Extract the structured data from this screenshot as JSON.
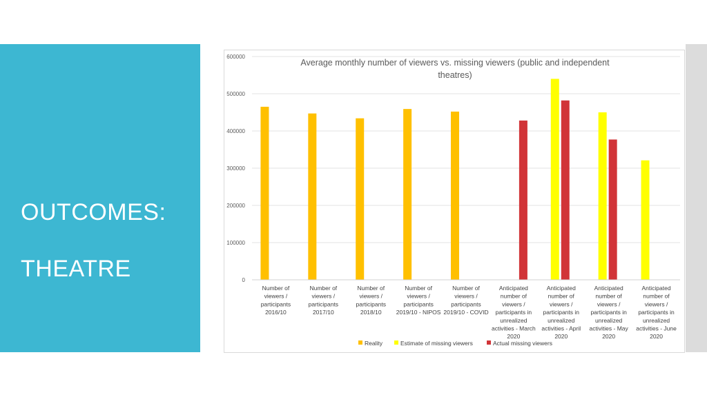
{
  "slide": {
    "title_line1": "OUTCOMES:",
    "title_line2": "THEATRE"
  },
  "colors": {
    "panel": "#3db7d2",
    "reality": "#ffc000",
    "estimate": "#ffff00",
    "actual": "#d13438"
  },
  "chart_data": {
    "type": "bar",
    "title_lines": [
      "Average monthly number of viewers vs. missing viewers (public and independent",
      "theatres)"
    ],
    "ylim": [
      0,
      600000
    ],
    "yticks": [
      0,
      100000,
      200000,
      300000,
      400000,
      500000,
      600000
    ],
    "grid": true,
    "legend_position": "bottom",
    "categories": [
      [
        "Number of",
        "viewers /",
        "participants",
        "2016/10"
      ],
      [
        "Number of",
        "viewers /",
        "participants",
        "2017/10"
      ],
      [
        "Number of",
        "viewers /",
        "participants",
        "2018/10"
      ],
      [
        "Number of",
        "viewers /",
        "participants",
        "2019/10 - NIPOS"
      ],
      [
        "Number of",
        "viewers /",
        "participants",
        "2019/10 - COVID"
      ],
      [
        "Anticipated",
        "number of",
        "viewers /",
        "participants in",
        "unrealized",
        "activities - March",
        "2020"
      ],
      [
        "Anticipated",
        "number of",
        "viewers /",
        "participants in",
        "unrealized",
        "activities - April",
        "2020"
      ],
      [
        "Anticipated",
        "number of",
        "viewers /",
        "participants in",
        "unrealized",
        "activities - May",
        "2020"
      ],
      [
        "Anticipated",
        "number of",
        "viewers /",
        "participants in",
        "unrealized",
        "activities - June",
        "2020"
      ]
    ],
    "series": [
      {
        "name": "Reality",
        "color": "#ffc000",
        "values": [
          465000,
          447000,
          434000,
          459000,
          452000,
          null,
          null,
          null,
          null
        ]
      },
      {
        "name": "Estimate of missing viewers",
        "color": "#ffff00",
        "values": [
          null,
          null,
          null,
          null,
          null,
          null,
          540000,
          450000,
          321000
        ]
      },
      {
        "name": "Actual missing viewers",
        "color": "#d13438",
        "values": [
          null,
          null,
          null,
          null,
          null,
          428000,
          482000,
          377000,
          null
        ]
      }
    ]
  }
}
